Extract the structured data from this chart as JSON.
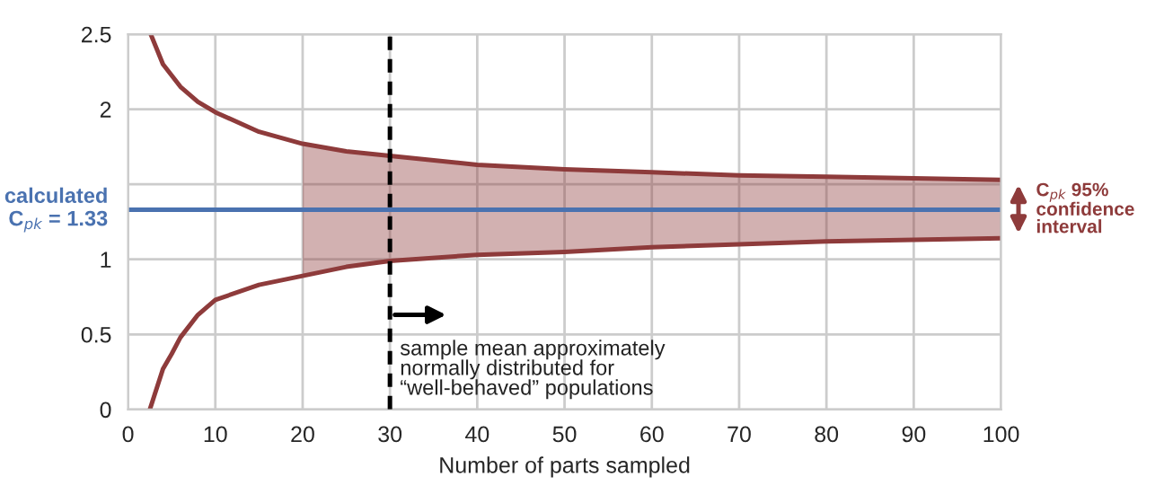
{
  "chart_data": {
    "type": "line",
    "xlabel": "Number of parts sampled",
    "xlim": [
      0,
      100
    ],
    "xticks": [
      0,
      10,
      20,
      30,
      40,
      50,
      60,
      70,
      80,
      90,
      100
    ],
    "ylim": [
      0,
      2.5
    ],
    "yticks": [
      0,
      0.5,
      1,
      {
        "value": 1.5,
        "label": null
      },
      2,
      2.5
    ],
    "grid": true,
    "legend": false,
    "marker": "none",
    "line_style": "solid",
    "series": [
      {
        "color": "#8e3b3b",
        "x": [
          2.6,
          4,
          6,
          8,
          10,
          15,
          20,
          25,
          30,
          40,
          50,
          60,
          70,
          80,
          90,
          100
        ],
        "values": [
          2.5,
          2.3,
          2.15,
          2.05,
          1.98,
          1.85,
          1.77,
          1.72,
          1.69,
          1.63,
          1.6,
          1.58,
          1.56,
          1.55,
          1.54,
          1.53
        ]
      },
      {
        "color": "#8e3b3b",
        "x": [
          2.5,
          4,
          5,
          6,
          8,
          10,
          15,
          20,
          25,
          30,
          40,
          50,
          60,
          70,
          80,
          90,
          100
        ],
        "values": [
          0,
          0.27,
          0.37,
          0.48,
          0.63,
          0.73,
          0.83,
          0.89,
          0.95,
          0.99,
          1.03,
          1.05,
          1.08,
          1.1,
          1.12,
          1.13,
          1.14
        ]
      },
      {
        "color": "#4a72b0",
        "x": [
          0,
          20,
          25,
          30,
          40,
          50,
          60,
          70,
          80,
          90,
          100
        ],
        "values": [
          1.33,
          1.33,
          1.33,
          1.33,
          1.33,
          1.33,
          1.33,
          1.33,
          1.33,
          1.33,
          1.33
        ],
        "lower": [
          null,
          0.89,
          0.95,
          0.99,
          1.03,
          1.05,
          1.08,
          1.1,
          1.12,
          1.13,
          1.14
        ],
        "upper": [
          null,
          1.77,
          1.72,
          1.69,
          1.63,
          1.6,
          1.58,
          1.56,
          1.55,
          1.54,
          1.53
        ]
      }
    ],
    "ref_lines": [
      {
        "axis": "x",
        "value": 30,
        "color": "#000000",
        "line_style": "dashed"
      }
    ],
    "annotations": [
      {
        "text": "calculated\nC$_{pk}$ = 1.33",
        "x": 0,
        "y": 1.33
      },
      {
        "text": "sample mean approximately\nnormally distributed for\n“well-behaved” populations",
        "x": 30,
        "y": 0.63
      },
      {
        "text": "C$_{pk}$ 95%\nconfidence\ninterval",
        "x": 100,
        "y": 1.33
      }
    ]
  }
}
